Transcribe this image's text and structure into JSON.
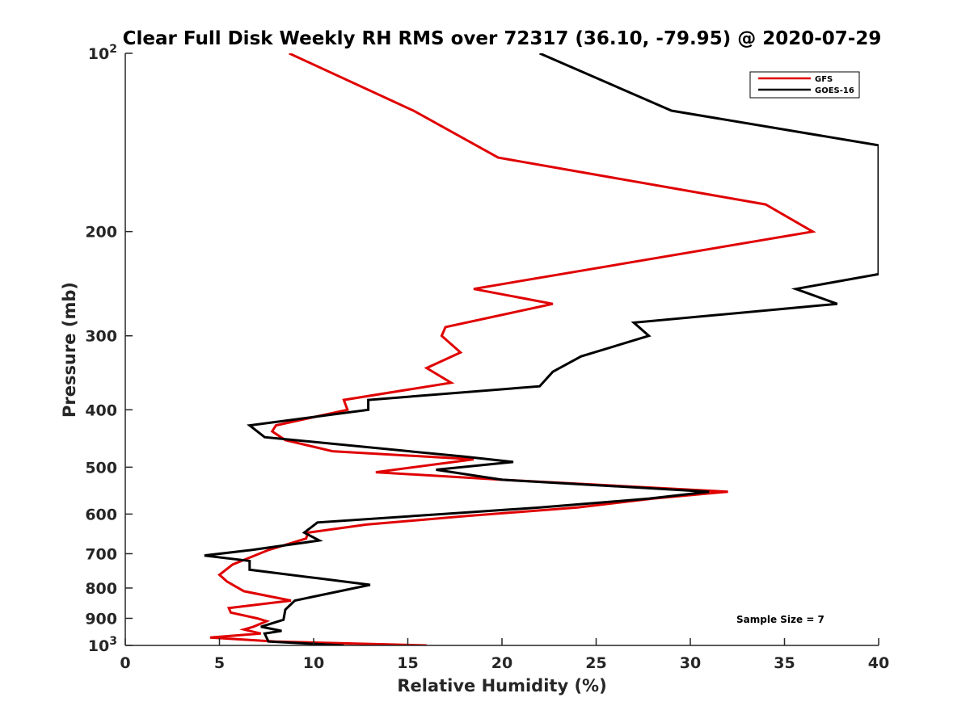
{
  "chart_data": {
    "type": "line",
    "title": "Clear Full Disk Weekly RH RMS over 72317 (36.10, -79.95) @ 2020-07-29",
    "xlabel": "Relative Humidity (%)",
    "ylabel": "Pressure (mb)",
    "xlim": [
      0,
      40
    ],
    "ylim": [
      100,
      1000
    ],
    "y_scale": "log",
    "y_reversed": true,
    "grid": false,
    "legend_position": "top-right",
    "x_ticks": [
      "0",
      "5",
      "10",
      "15",
      "20",
      "25",
      "30",
      "35",
      "40"
    ],
    "y_ticks": [
      {
        "value": 100,
        "base": "10",
        "exp": "2"
      },
      {
        "value": 200,
        "label": "200"
      },
      {
        "value": 300,
        "label": "300"
      },
      {
        "value": 400,
        "label": "400"
      },
      {
        "value": 500,
        "label": "500"
      },
      {
        "value": 600,
        "label": "600"
      },
      {
        "value": 700,
        "label": "700"
      },
      {
        "value": 800,
        "label": "800"
      },
      {
        "value": 900,
        "label": "900"
      },
      {
        "value": 1000,
        "base": "10",
        "exp": "3"
      }
    ],
    "annotation": "Sample Size = 7",
    "series": [
      {
        "name": "GFS",
        "color": "#e00000",
        "points": [
          [
            8.7,
            100
          ],
          [
            15.3,
            125
          ],
          [
            19.8,
            150
          ],
          [
            34,
            180
          ],
          [
            36.5,
            200
          ],
          [
            18.5,
            250
          ],
          [
            22.7,
            265
          ],
          [
            17,
            290
          ],
          [
            16.8,
            300
          ],
          [
            17.8,
            320
          ],
          [
            16,
            340
          ],
          [
            17.3,
            360
          ],
          [
            11.6,
            385
          ],
          [
            11.8,
            400
          ],
          [
            8,
            425
          ],
          [
            7.8,
            435
          ],
          [
            8.5,
            450
          ],
          [
            11,
            470
          ],
          [
            18.5,
            485
          ],
          [
            13.3,
            510
          ],
          [
            20,
            525
          ],
          [
            32,
            550
          ],
          [
            28,
            565
          ],
          [
            24,
            585
          ],
          [
            18,
            605
          ],
          [
            12.8,
            625
          ],
          [
            9.7,
            645
          ],
          [
            9.6,
            660
          ],
          [
            7.6,
            690
          ],
          [
            5.7,
            730
          ],
          [
            5,
            760
          ],
          [
            5.4,
            780
          ],
          [
            6.3,
            810
          ],
          [
            8.8,
            840
          ],
          [
            5.5,
            865
          ],
          [
            5.6,
            880
          ],
          [
            7,
            900
          ],
          [
            7.5,
            910
          ],
          [
            6.8,
            930
          ],
          [
            6.3,
            940
          ],
          [
            6.9,
            950
          ],
          [
            7.2,
            955
          ],
          [
            4.5,
            970
          ],
          [
            8,
            985
          ],
          [
            16,
            1000
          ]
        ]
      },
      {
        "name": "GOES-16",
        "color": "#000000",
        "points": [
          [
            22,
            100
          ],
          [
            29,
            125
          ],
          [
            40,
            143
          ],
          [
            40,
            236
          ],
          [
            35.6,
            250
          ],
          [
            37.8,
            265
          ],
          [
            27,
            285
          ],
          [
            27.8,
            300
          ],
          [
            24.2,
            325
          ],
          [
            22.7,
            345
          ],
          [
            22,
            365
          ],
          [
            12.9,
            385
          ],
          [
            12.9,
            400
          ],
          [
            6.6,
            425
          ],
          [
            7.4,
            445
          ],
          [
            18,
            480
          ],
          [
            20.6,
            490
          ],
          [
            16.5,
            505
          ],
          [
            20,
            525
          ],
          [
            31,
            550
          ],
          [
            27.8,
            565
          ],
          [
            22,
            585
          ],
          [
            10.2,
            620
          ],
          [
            9.5,
            645
          ],
          [
            10.3,
            665
          ],
          [
            6.7,
            690
          ],
          [
            4.2,
            705
          ],
          [
            6.6,
            720
          ],
          [
            6.6,
            745
          ],
          [
            10.2,
            770
          ],
          [
            13,
            790
          ],
          [
            9,
            840
          ],
          [
            8.5,
            870
          ],
          [
            8.4,
            905
          ],
          [
            7.2,
            930
          ],
          [
            8.3,
            945
          ],
          [
            7.4,
            955
          ],
          [
            7.6,
            985
          ],
          [
            11.6,
            1000
          ]
        ]
      }
    ]
  }
}
